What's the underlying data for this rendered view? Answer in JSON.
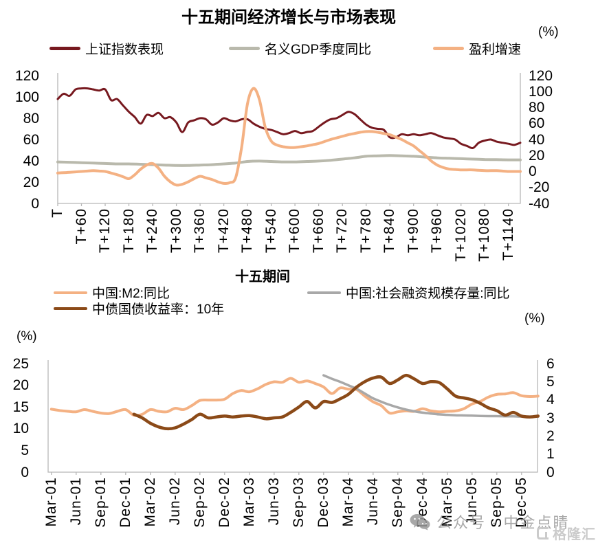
{
  "chart_data": [
    {
      "type": "line",
      "title": "十五期间经济增长与市场表现",
      "right_axis_unit": "(%)",
      "legend": [
        {
          "label": "上证指数表现",
          "color": "#77191F"
        },
        {
          "label": "名义GDP季度同比",
          "color": "#B9B9AC"
        },
        {
          "label": "盈利增速",
          "color": "#F4B183"
        }
      ],
      "x_axis": {
        "tick_labels": [
          "T",
          "T+60",
          "T+120",
          "T+180",
          "T+240",
          "T+300",
          "T+360",
          "T+420",
          "T+480",
          "T+540",
          "T+600",
          "T+660",
          "T+720",
          "T+780",
          "T+840",
          "T+900",
          "T+960",
          "T+1020",
          "T+1080",
          "T+1140"
        ],
        "tick_values": [
          0,
          60,
          120,
          180,
          240,
          300,
          360,
          420,
          480,
          540,
          600,
          660,
          720,
          780,
          840,
          900,
          960,
          1020,
          1080,
          1140
        ],
        "domain_max": 1170
      },
      "left_axis": {
        "min": 0,
        "max": 120,
        "ticks": [
          120,
          100,
          80,
          60,
          40,
          20,
          0
        ]
      },
      "right_axis": {
        "min": -40,
        "max": 120,
        "ticks": [
          120,
          100,
          80,
          60,
          40,
          20,
          0,
          -20,
          -40
        ]
      },
      "series": [
        {
          "name": "上证指数表现",
          "axis": "left",
          "color": "#77191F",
          "line_width": 3,
          "x_start": 0,
          "x_step": 15,
          "values": [
            98,
            103,
            101,
            107,
            108,
            108,
            107,
            106,
            107,
            97,
            98,
            92,
            86,
            81,
            75,
            83,
            82,
            85,
            80,
            81,
            76,
            67,
            76,
            78,
            80,
            79,
            74,
            76,
            80,
            78,
            77,
            79,
            79,
            75,
            72,
            70,
            69,
            67,
            65,
            66,
            68,
            66,
            67,
            68,
            72,
            76,
            79,
            80,
            83,
            86,
            84,
            79,
            74,
            71,
            70,
            69,
            62,
            62,
            65,
            64,
            65,
            64,
            65,
            66,
            64,
            62,
            61,
            60,
            56,
            54,
            52,
            57,
            59,
            60,
            58,
            57,
            56,
            55,
            57
          ]
        },
        {
          "name": "名义GDP季度同比",
          "axis": "right",
          "color": "#B9B9AC",
          "line_width": 4,
          "x_start": 0,
          "x_step": 30,
          "values": [
            12,
            11.5,
            11,
            10.5,
            10,
            9.5,
            9.5,
            9,
            8.5,
            8,
            7.5,
            7.5,
            8,
            8.5,
            9.5,
            10.5,
            12.5,
            13,
            12.5,
            12,
            12,
            12.5,
            13,
            14,
            15.5,
            17,
            19,
            19.5,
            20,
            19.5,
            19,
            18,
            17,
            16.5,
            16,
            15.5,
            15,
            14.8,
            14.5,
            14.5
          ]
        },
        {
          "name": "盈利增速",
          "axis": "right",
          "color": "#F4B183",
          "line_width": 4,
          "x_start": 0,
          "x_step": 15,
          "values": [
            -2,
            -1.5,
            -1,
            -0.5,
            0,
            0.5,
            1,
            0.5,
            0,
            -2,
            -4,
            -6.5,
            -9,
            -4,
            3,
            8,
            10,
            4,
            -6,
            -13,
            -17,
            -16,
            -13,
            -9,
            -6,
            -8,
            -10,
            -13,
            -15,
            -14,
            -8,
            30,
            85,
            104,
            90,
            55,
            38,
            33,
            31,
            30,
            30,
            31,
            32,
            33.5,
            35,
            37.5,
            40,
            42,
            44,
            46,
            47.5,
            49,
            50,
            50,
            49,
            47.5,
            46,
            43,
            40,
            36,
            32,
            26,
            20,
            13,
            8,
            5,
            3,
            2.5,
            2,
            2,
            2,
            1.5,
            1,
            1,
            1,
            0.5,
            0,
            0,
            0
          ]
        }
      ]
    },
    {
      "type": "line",
      "title": "十五期间",
      "left_axis_unit": "(%)",
      "right_axis_unit": "(%)",
      "legend": [
        {
          "label": "中国:M2:同比",
          "color": "#F4B183"
        },
        {
          "label": "中国:社会融资规模存量:同比",
          "color": "#A8A8A8"
        },
        {
          "label": "中债国债收益率：10年",
          "color": "#8B4A18"
        }
      ],
      "x_axis": {
        "tick_labels": [
          "Mar-01",
          "Jun-01",
          "Sep-01",
          "Dec-01",
          "Mar-02",
          "Jun-02",
          "Sep-02",
          "Dec-02",
          "Mar-03",
          "Jun-03",
          "Sep-03",
          "Dec-03",
          "Mar-04",
          "Jun-04",
          "Sep-04",
          "Dec-04",
          "Mar-05",
          "Jun-05",
          "Sep-05",
          "Dec-05"
        ],
        "tick_values": [
          0,
          3,
          6,
          9,
          12,
          15,
          18,
          21,
          24,
          27,
          30,
          33,
          36,
          39,
          42,
          45,
          48,
          51,
          54,
          57
        ],
        "domain_max": 59
      },
      "left_axis": {
        "min": 0,
        "max": 25,
        "ticks": [
          25,
          20,
          15,
          10,
          5,
          0
        ]
      },
      "right_axis": {
        "min": 0,
        "max": 6,
        "ticks": [
          6,
          5,
          4,
          3,
          2,
          1,
          0
        ]
      },
      "series": [
        {
          "name": "中国:M2:同比",
          "axis": "left",
          "color": "#F4B183",
          "line_width": 4,
          "x_start": 0,
          "x_step": 1,
          "values": [
            14.5,
            14.2,
            14.0,
            13.9,
            14.4,
            14.0,
            13.6,
            13.5,
            14.0,
            14.4,
            13.1,
            13.3,
            14.4,
            14.0,
            13.9,
            14.7,
            14.4,
            15.3,
            16.5,
            16.6,
            16.6,
            16.8,
            18.1,
            18.8,
            18.5,
            19.2,
            20.2,
            20.8,
            20.7,
            21.6,
            20.7,
            21.0,
            20.4,
            19.6,
            18.1,
            19.4,
            19.1,
            19.0,
            17.5,
            16.2,
            15.3,
            13.6,
            13.9,
            14.1,
            14.0,
            14.6,
            14.1,
            13.9,
            14.0,
            14.1,
            14.6,
            15.7,
            16.3,
            17.3,
            17.9,
            18.0,
            18.3,
            17.6,
            17.4,
            17.5
          ]
        },
        {
          "name": "中国:社会融资规模存量:同比",
          "axis": "left",
          "color": "#A8A8A8",
          "line_width": 3.5,
          "x_start": 33,
          "x_step": 1,
          "values": [
            22.3,
            21.5,
            20.8,
            20.0,
            19.2,
            18.1,
            17.0,
            16.2,
            15.5,
            14.9,
            14.4,
            14.0,
            13.7,
            13.5,
            13.3,
            13.2,
            13.1,
            13.05,
            13.0,
            12.95,
            12.9,
            12.9,
            12.85,
            12.85,
            12.8,
            12.8,
            12.8
          ]
        },
        {
          "name": "中债国债收益率：10年",
          "axis": "right",
          "color": "#8B4A18",
          "line_width": 4.5,
          "x_start": 10,
          "x_step": 1,
          "values": [
            3.2,
            3.0,
            2.7,
            2.5,
            2.4,
            2.45,
            2.65,
            2.9,
            3.2,
            3.0,
            3.05,
            3.1,
            3.05,
            3.1,
            3.12,
            3.05,
            2.95,
            3.0,
            3.05,
            3.3,
            3.6,
            3.9,
            3.55,
            3.9,
            3.85,
            4.05,
            4.3,
            4.7,
            5.0,
            5.2,
            5.25,
            4.9,
            5.1,
            5.35,
            5.15,
            4.9,
            5.0,
            4.95,
            4.6,
            4.2,
            4.1,
            4.0,
            3.8,
            3.55,
            3.4,
            3.15,
            3.3,
            3.1,
            3.05,
            3.1
          ]
        }
      ]
    }
  ],
  "watermark": {
    "wechat_text": "公众号 · 中金点睛",
    "logo_text": "格隆汇"
  }
}
